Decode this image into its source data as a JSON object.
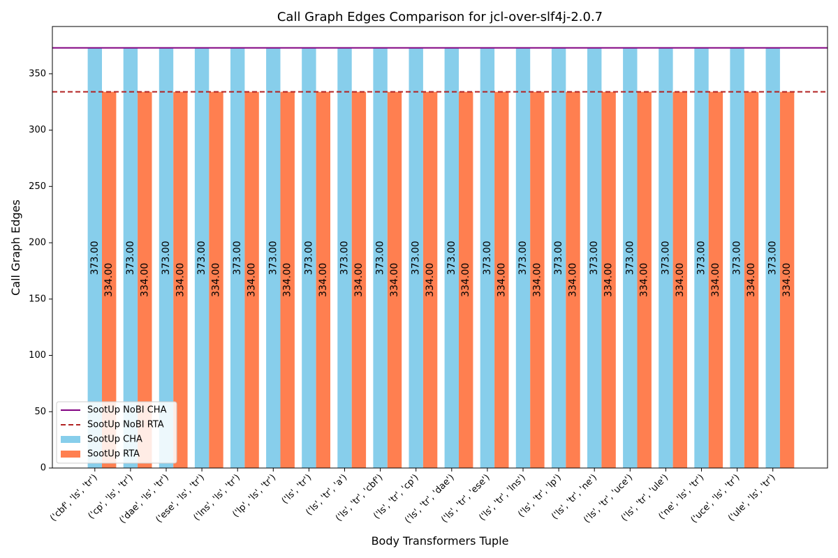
{
  "chart_data": {
    "type": "bar",
    "title": "Call Graph Edges Comparison for jcl-over-slf4j-2.0.7",
    "xlabel": "Body Transformers Tuple",
    "ylabel": "Call Graph Edges",
    "ylim": [
      0,
      392
    ],
    "yticks": [
      0,
      50,
      100,
      150,
      200,
      250,
      300,
      350
    ],
    "grid": false,
    "legend_position": "lower-left",
    "categories": [
      "('cbf', 'ls', 'tr')",
      "('cp', 'ls', 'tr')",
      "('dae', 'ls', 'tr')",
      "('ese', 'ls', 'tr')",
      "('lns', 'ls', 'tr')",
      "('lp', 'ls', 'tr')",
      "('ls', 'tr')",
      "('ls', 'tr', 'a')",
      "('ls', 'tr', 'cbf')",
      "('ls', 'tr', 'cp')",
      "('ls', 'tr', 'dae')",
      "('ls', 'tr', 'ese')",
      "('ls', 'tr', 'lns')",
      "('ls', 'tr', 'lp')",
      "('ls', 'tr', 'ne')",
      "('ls', 'tr', 'uce')",
      "('ls', 'tr', 'ule')",
      "('ne', 'ls', 'tr')",
      "('uce', 'ls', 'tr')",
      "('ule', 'ls', 'tr')"
    ],
    "series": [
      {
        "name": "SootUp CHA",
        "color": "#87CEEB",
        "values": [
          373,
          373,
          373,
          373,
          373,
          373,
          373,
          373,
          373,
          373,
          373,
          373,
          373,
          373,
          373,
          373,
          373,
          373,
          373,
          373
        ],
        "labels": [
          "373.00",
          "373.00",
          "373.00",
          "373.00",
          "373.00",
          "373.00",
          "373.00",
          "373.00",
          "373.00",
          "373.00",
          "373.00",
          "373.00",
          "373.00",
          "373.00",
          "373.00",
          "373.00",
          "373.00",
          "373.00",
          "373.00",
          "373.00"
        ]
      },
      {
        "name": "SootUp RTA",
        "color": "#FF7F50",
        "values": [
          334,
          334,
          334,
          334,
          334,
          334,
          334,
          334,
          334,
          334,
          334,
          334,
          334,
          334,
          334,
          334,
          334,
          334,
          334,
          334
        ],
        "labels": [
          "334.00",
          "334.00",
          "334.00",
          "334.00",
          "334.00",
          "334.00",
          "334.00",
          "334.00",
          "334.00",
          "334.00",
          "334.00",
          "334.00",
          "334.00",
          "334.00",
          "334.00",
          "334.00",
          "334.00",
          "334.00",
          "334.00",
          "334.00"
        ]
      }
    ],
    "reference_lines": [
      {
        "name": "SootUp NoBI CHA",
        "value": 373,
        "color": "#800080",
        "style": "solid"
      },
      {
        "name": "SootUp NoBI RTA",
        "value": 334,
        "color": "#B22222",
        "style": "dashed"
      }
    ]
  }
}
